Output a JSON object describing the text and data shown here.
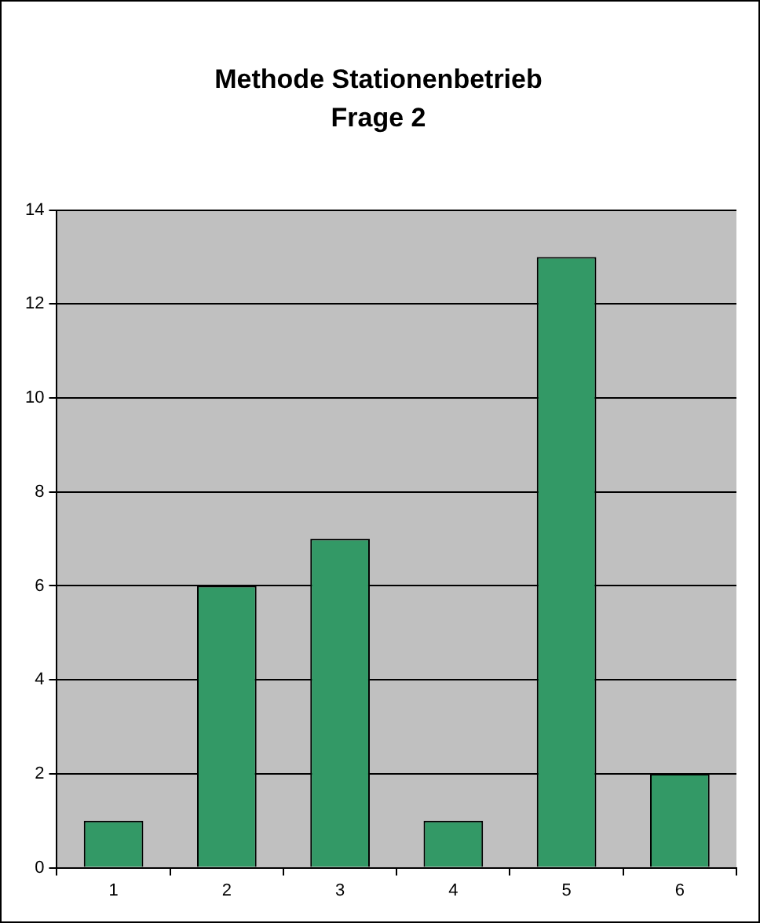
{
  "chart_data": {
    "type": "bar",
    "title": "Methode Stationenbetrieb",
    "subtitle": "Frage 2",
    "categories": [
      "1",
      "2",
      "3",
      "4",
      "5",
      "6"
    ],
    "values": [
      1,
      6,
      7,
      1,
      13,
      2
    ],
    "color": "#339966",
    "ylim": [
      0,
      14
    ],
    "yticks": [
      0,
      2,
      4,
      6,
      8,
      10,
      12,
      14
    ],
    "grid": "y",
    "legend": false
  }
}
